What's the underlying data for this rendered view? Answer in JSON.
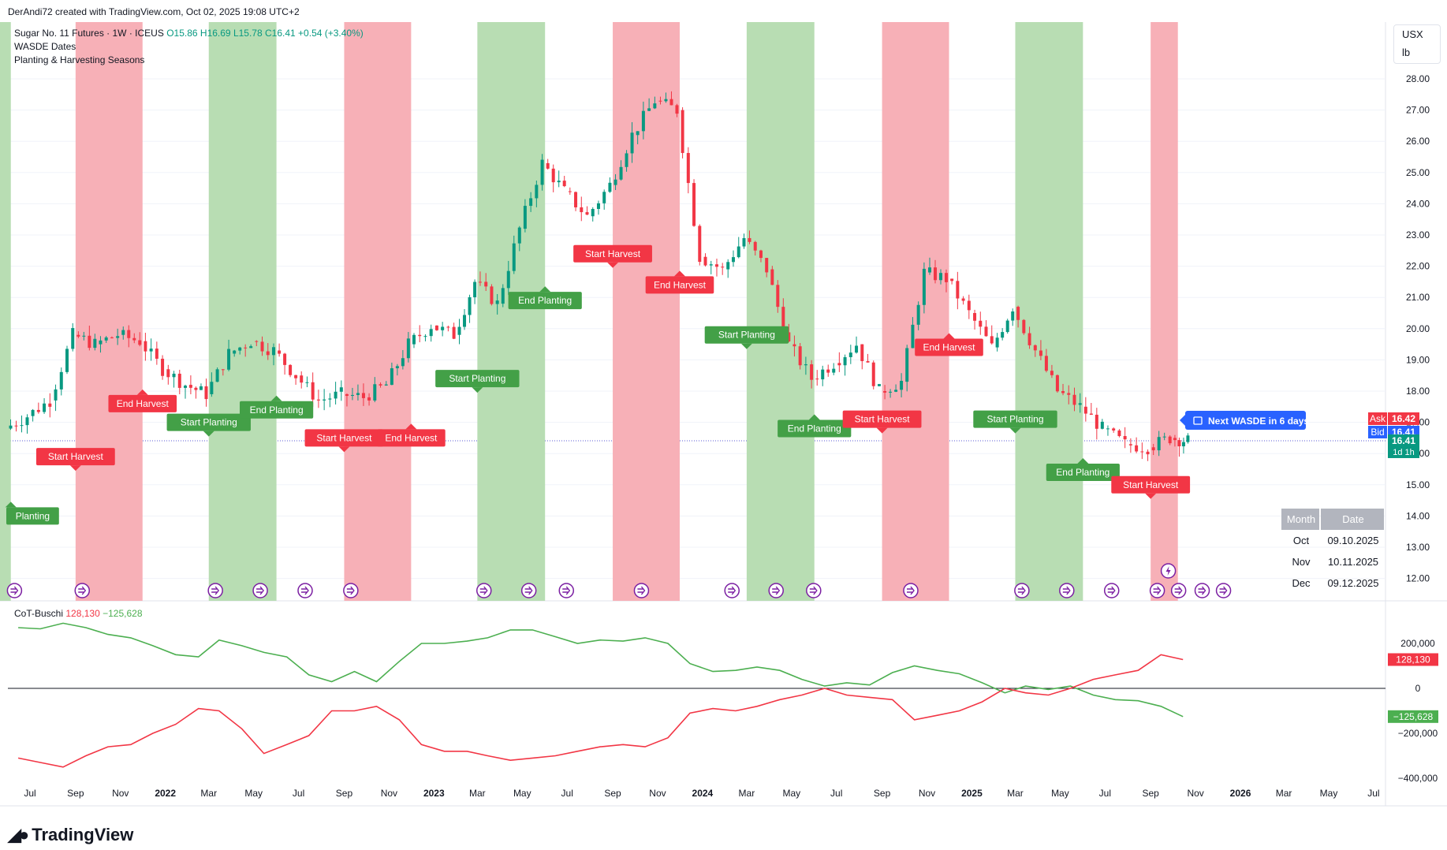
{
  "header": {
    "attribution": "DerAndi72 created with TradingView.com, Oct 02, 2025 19:08 UTC+2",
    "symbol_line_prefix": "Sugar No. 11 Futures · 1W · ICEUS",
    "ohlc": {
      "o": "O15.86",
      "h": "H16.69",
      "l": "L15.78",
      "c": "C16.41",
      "chg": "+0.54 (+3.40%)"
    },
    "indicator1": "WASDE Dates",
    "indicator2": "Planting & Harvesting Seasons",
    "unit_currency": "USX",
    "unit_weight": "lb"
  },
  "brand": {
    "name": "TradingView",
    "logo_icon": "tradingview-logo-icon"
  },
  "colors": {
    "up": "#089981",
    "down": "#f23645",
    "green_band": "#b8ddb3",
    "red_band": "#f7b0b7",
    "label_green": "#43a047",
    "label_red": "#f23645",
    "cot_green": "#4caf50",
    "cot_red": "#f23645",
    "wasde_icon": "#7b1fa2",
    "next_wasde": "#2962ff",
    "last_price": "#089981"
  },
  "price_axis": {
    "ticks": [
      "12.00",
      "13.00",
      "14.00",
      "15.00",
      "16.00",
      "17.00",
      "18.00",
      "19.00",
      "20.00",
      "21.00",
      "22.00",
      "23.00",
      "24.00",
      "25.00",
      "26.00",
      "27.00",
      "28.00"
    ],
    "ask_label": "Ask",
    "ask_value": "16.42",
    "bid_label": "Bid",
    "bid_value": "16.41",
    "last_value": "16.41",
    "countdown": "1d 1h"
  },
  "time_axis": [
    "Jul",
    "Sep",
    "Nov",
    "2022",
    "Mar",
    "May",
    "Jul",
    "Sep",
    "Nov",
    "2023",
    "Mar",
    "May",
    "Jul",
    "Sep",
    "Nov",
    "2024",
    "Mar",
    "May",
    "Jul",
    "Sep",
    "Nov",
    "2025",
    "Mar",
    "May",
    "Jul",
    "Sep",
    "Nov",
    "2026",
    "Mar",
    "May",
    "Jul"
  ],
  "seasons": {
    "bands": [
      {
        "type": "green",
        "from": "2021-05-01",
        "to": "2021-06-05"
      },
      {
        "type": "red",
        "from": "2021-09-01",
        "to": "2021-12-01"
      },
      {
        "type": "green",
        "from": "2022-03-01",
        "to": "2022-06-01"
      },
      {
        "type": "red",
        "from": "2022-09-01",
        "to": "2022-12-01"
      },
      {
        "type": "green",
        "from": "2023-03-01",
        "to": "2023-06-01"
      },
      {
        "type": "red",
        "from": "2023-09-01",
        "to": "2023-12-01"
      },
      {
        "type": "green",
        "from": "2024-03-01",
        "to": "2024-06-01"
      },
      {
        "type": "red",
        "from": "2024-09-01",
        "to": "2024-12-01"
      },
      {
        "type": "green",
        "from": "2025-03-01",
        "to": "2025-06-01"
      },
      {
        "type": "red",
        "from": "2025-09-01",
        "to": "2025-10-08"
      }
    ],
    "labels": [
      {
        "text": "Planting",
        "type": "green",
        "date": "2021-06-05",
        "price": 14.0,
        "dir": "up"
      },
      {
        "text": "Start Harvest",
        "type": "red",
        "date": "2021-09-01",
        "price": 15.9,
        "dir": "down"
      },
      {
        "text": "End Harvest",
        "type": "red",
        "date": "2021-12-01",
        "price": 17.6,
        "dir": "up"
      },
      {
        "text": "Start Planting",
        "type": "green",
        "date": "2022-03-01",
        "price": 17.0,
        "dir": "down"
      },
      {
        "text": "End Planting",
        "type": "green",
        "date": "2022-06-01",
        "price": 17.4,
        "dir": "up"
      },
      {
        "text": "Start Harvest",
        "type": "red",
        "date": "2022-09-01",
        "price": 16.5,
        "dir": "down"
      },
      {
        "text": "End Harvest",
        "type": "red",
        "date": "2022-12-01",
        "price": 16.5,
        "dir": "up"
      },
      {
        "text": "Start Planting",
        "type": "green",
        "date": "2023-03-01",
        "price": 18.4,
        "dir": "down"
      },
      {
        "text": "End Planting",
        "type": "green",
        "date": "2023-06-01",
        "price": 20.9,
        "dir": "up"
      },
      {
        "text": "Start Harvest",
        "type": "red",
        "date": "2023-09-01",
        "price": 22.4,
        "dir": "down"
      },
      {
        "text": "End Harvest",
        "type": "red",
        "date": "2023-12-01",
        "price": 21.4,
        "dir": "up"
      },
      {
        "text": "Start Planting",
        "type": "green",
        "date": "2024-03-01",
        "price": 19.8,
        "dir": "down"
      },
      {
        "text": "End Planting",
        "type": "green",
        "date": "2024-06-01",
        "price": 16.8,
        "dir": "up"
      },
      {
        "text": "Start Harvest",
        "type": "red",
        "date": "2024-09-01",
        "price": 17.1,
        "dir": "down"
      },
      {
        "text": "End Harvest",
        "type": "red",
        "date": "2024-12-01",
        "price": 19.4,
        "dir": "up"
      },
      {
        "text": "Start Planting",
        "type": "green",
        "date": "2025-03-01",
        "price": 17.1,
        "dir": "down"
      },
      {
        "text": "End Planting",
        "type": "green",
        "date": "2025-06-01",
        "price": 15.4,
        "dir": "up"
      },
      {
        "text": "Start Harvest",
        "type": "red",
        "date": "2025-09-01",
        "price": 15.0,
        "dir": "down"
      }
    ]
  },
  "wasde": {
    "next_label": "Next WASDE in 6 days",
    "next_icon": "calendar-icon",
    "marker_icon": "wasde-arrow-icon",
    "special_icon": "lightning-icon",
    "dates": [
      "2021-06-10",
      "2021-09-10",
      "2022-03-10",
      "2022-05-10",
      "2022-07-10",
      "2022-09-10",
      "2023-03-10",
      "2023-05-10",
      "2023-06-30",
      "2023-10-10",
      "2024-02-10",
      "2024-04-10",
      "2024-05-31",
      "2024-10-10",
      "2025-03-10",
      "2025-05-10",
      "2025-07-10",
      "2025-09-10",
      "2025-10-09",
      "2025-11-10",
      "2025-12-09"
    ],
    "table": {
      "headers": [
        "Month",
        "Date"
      ],
      "rows": [
        [
          "Oct",
          "09.10.2025"
        ],
        [
          "Nov",
          "10.11.2025"
        ],
        [
          "Dec",
          "09.12.2025"
        ]
      ]
    }
  },
  "cot": {
    "title": "CoT-Buschi",
    "value_red": "128,130",
    "value_green": "−125,628",
    "axis_ticks": [
      "200,000",
      "0",
      "−200,000",
      "−400,000"
    ],
    "tag_red": "128,130",
    "tag_green": "−125,628"
  },
  "chart_data": [
    {
      "type": "candlestick",
      "title": "Sugar No. 11 Futures · 1W · ICEUS",
      "ylabel": "USX/lb",
      "ylim": [
        11.6,
        28.8
      ],
      "x": [
        "2021-06",
        "2021-07",
        "2021-08",
        "2021-09",
        "2021-10",
        "2021-11",
        "2021-12",
        "2022-01",
        "2022-02",
        "2022-03",
        "2022-04",
        "2022-05",
        "2022-06",
        "2022-07",
        "2022-08",
        "2022-09",
        "2022-10",
        "2022-11",
        "2022-12",
        "2023-01",
        "2023-02",
        "2023-03",
        "2023-04",
        "2023-05",
        "2023-06",
        "2023-07",
        "2023-08",
        "2023-09",
        "2023-10",
        "2023-11",
        "2023-12",
        "2024-01",
        "2024-02",
        "2024-03",
        "2024-04",
        "2024-05",
        "2024-06",
        "2024-07",
        "2024-08",
        "2024-09",
        "2024-10",
        "2024-11",
        "2024-12",
        "2025-01",
        "2025-02",
        "2025-03",
        "2025-04",
        "2025-05",
        "2025-06",
        "2025-07",
        "2025-08",
        "2025-09",
        "2025-10"
      ],
      "close": [
        17.2,
        17.7,
        19.8,
        19.5,
        19.8,
        19.6,
        18.7,
        18.2,
        17.9,
        19.2,
        19.6,
        19.3,
        18.5,
        17.7,
        17.9,
        17.8,
        18.2,
        19.5,
        20.1,
        19.8,
        21.5,
        20.8,
        23.2,
        25.3,
        24.4,
        23.6,
        24.6,
        26.2,
        27.3,
        27.0,
        22.3,
        21.9,
        22.9,
        21.9,
        19.5,
        18.4,
        18.9,
        19.5,
        18.0,
        18.3,
        21.8,
        21.6,
        20.5,
        19.4,
        20.7,
        19.3,
        18.0,
        17.5,
        16.8,
        16.3,
        16.2,
        16.5,
        16.41
      ]
    },
    {
      "type": "line",
      "title": "CoT-Buschi",
      "ylim": [
        -440000,
        300000
      ],
      "x": [
        "2021-06",
        "2021-07",
        "2021-08",
        "2021-09",
        "2021-10",
        "2021-11",
        "2021-12",
        "2022-01",
        "2022-02",
        "2022-03",
        "2022-04",
        "2022-05",
        "2022-06",
        "2022-07",
        "2022-08",
        "2022-09",
        "2022-10",
        "2022-11",
        "2022-12",
        "2023-01",
        "2023-02",
        "2023-03",
        "2023-04",
        "2023-05",
        "2023-06",
        "2023-07",
        "2023-08",
        "2023-09",
        "2023-10",
        "2023-11",
        "2023-12",
        "2024-01",
        "2024-02",
        "2024-03",
        "2024-04",
        "2024-05",
        "2024-06",
        "2024-07",
        "2024-08",
        "2024-09",
        "2024-10",
        "2024-11",
        "2024-12",
        "2025-01",
        "2025-02",
        "2025-03",
        "2025-04",
        "2025-05",
        "2025-06",
        "2025-07",
        "2025-08",
        "2025-09",
        "2025-10"
      ],
      "series": [
        {
          "values": [
            270000,
            265000,
            290000,
            270000,
            240000,
            225000,
            190000,
            150000,
            140000,
            215000,
            190000,
            160000,
            140000,
            60000,
            30000,
            75000,
            30000,
            120000,
            200000,
            200000,
            210000,
            225000,
            260000,
            260000,
            230000,
            200000,
            215000,
            210000,
            225000,
            200000,
            110000,
            75000,
            80000,
            95000,
            80000,
            40000,
            10000,
            25000,
            15000,
            70000,
            100000,
            80000,
            65000,
            25000,
            -20000,
            10000,
            -5000,
            10000,
            -30000,
            -50000,
            -55000,
            -80000,
            -125628
          ]
        },
        {
          "values": [
            -310000,
            -330000,
            -350000,
            -300000,
            -260000,
            -250000,
            -200000,
            -160000,
            -90000,
            -100000,
            -180000,
            -290000,
            -250000,
            -210000,
            -100000,
            -100000,
            -80000,
            -140000,
            -250000,
            -280000,
            -280000,
            -300000,
            -320000,
            -310000,
            -300000,
            -280000,
            -260000,
            -250000,
            -260000,
            -220000,
            -110000,
            -90000,
            -100000,
            -80000,
            -50000,
            -30000,
            0,
            -30000,
            -40000,
            -50000,
            -140000,
            -120000,
            -100000,
            -60000,
            0,
            -20000,
            -30000,
            0,
            40000,
            60000,
            80000,
            150000,
            128130
          ]
        }
      ]
    }
  ]
}
